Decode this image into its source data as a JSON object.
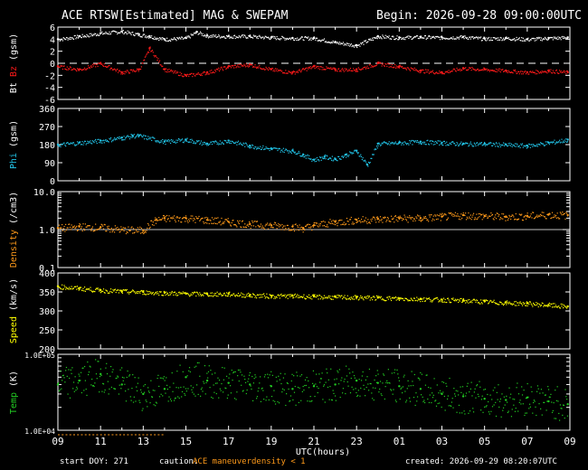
{
  "header": {
    "title": "ACE RTSW[Estimated] MAG & SWEPAM",
    "begin": "Begin: 2026-09-28 09:00:00UTC"
  },
  "footer": {
    "start_doy": "start DOY: 271",
    "caution_label": "caution:",
    "caution_maneuver": "ACE maneuver",
    "caution_density": "density < 1",
    "created": "created: 2026-09-29 08:20:07UTC"
  },
  "colors": {
    "bt": "#ffffff",
    "bz": "#ff1a1a",
    "phi": "#22c4e8",
    "density": "#ff9a1a",
    "speed": "#ffff00",
    "temp": "#22cc22",
    "axis": "#ffffff",
    "background": "#000000",
    "maneuver": "#ff9a1a"
  },
  "chart_data": [
    {
      "type": "line",
      "panel": "mag",
      "ylabel_parts": [
        "Bt",
        "Bz",
        "(gsm)"
      ],
      "yticks": [
        6,
        4,
        2,
        0,
        -2,
        -4,
        -6
      ],
      "ylim": [
        -6,
        6
      ],
      "zero_line_dashed": true,
      "series": [
        {
          "name": "Bt",
          "x": [
            0,
            1,
            2,
            3,
            3.8,
            4.3,
            5,
            6,
            6.5,
            7,
            8,
            9,
            10,
            11,
            12,
            13,
            14,
            15,
            16,
            17,
            18,
            19,
            20,
            21,
            22,
            23,
            23.9
          ],
          "values": [
            4,
            4.5,
            5,
            5.3,
            4.8,
            4.5,
            4,
            4.2,
            5.2,
            4.6,
            4.5,
            4.5,
            4.3,
            4.2,
            4.2,
            3.5,
            3,
            4.5,
            4.3,
            4.4,
            4.3,
            4.4,
            4.1,
            4.2,
            4.0,
            4.2,
            4.3
          ]
        },
        {
          "name": "Bz",
          "x": [
            0,
            1,
            2,
            3,
            3.8,
            4.3,
            5,
            6,
            7,
            8,
            9,
            10,
            11,
            12,
            13,
            14,
            15,
            16,
            17,
            18,
            19,
            20,
            21,
            22,
            23,
            23.9
          ],
          "values": [
            -0.5,
            -1,
            0,
            -1.5,
            -1,
            2.5,
            -1,
            -2,
            -1.5,
            -0.5,
            -0.2,
            -1,
            -1.5,
            -0.5,
            -1,
            -1,
            0,
            -0.5,
            -1.2,
            -1.5,
            -0.8,
            -1,
            -1.2,
            -1.5,
            -1.2,
            -1.5
          ]
        }
      ]
    },
    {
      "type": "scatter",
      "panel": "phi",
      "ylabel_parts": [
        "Phi",
        "(gsm)"
      ],
      "yticks": [
        360,
        270,
        180,
        90,
        0
      ],
      "ylim": [
        0,
        360
      ],
      "series": [
        {
          "name": "Phi",
          "x": [
            0,
            1,
            2,
            3,
            3.5,
            3.8,
            5,
            6,
            7,
            8,
            9,
            10,
            11,
            11.5,
            12,
            12.5,
            13,
            13.5,
            14,
            14.5,
            15,
            16,
            17,
            18,
            19,
            20,
            21,
            22,
            23,
            23.9
          ],
          "values": [
            180,
            190,
            200,
            215,
            225,
            225,
            195,
            205,
            185,
            200,
            175,
            160,
            150,
            130,
            105,
            120,
            110,
            130,
            150,
            80,
            185,
            190,
            195,
            190,
            185,
            185,
            180,
            175,
            190,
            205
          ]
        }
      ]
    },
    {
      "type": "scatter",
      "panel": "density",
      "log_scale": true,
      "ylabel_parts": [
        "Density",
        "(/cm3)"
      ],
      "ytick_labels": [
        "10.0",
        "1.0",
        "0.1"
      ],
      "ylim": [
        0.1,
        10
      ],
      "series": [
        {
          "name": "Density",
          "x": [
            0,
            1,
            2,
            3,
            4,
            4.6,
            5,
            6,
            7,
            8,
            9,
            10,
            11,
            11.5,
            12,
            13,
            14,
            15,
            16,
            17,
            18,
            19,
            20,
            21,
            22,
            23,
            23.9
          ],
          "values": [
            1.1,
            1.2,
            1.15,
            1.0,
            0.95,
            1.8,
            2.0,
            2.0,
            1.8,
            1.6,
            1.4,
            1.3,
            1.2,
            1.1,
            1.3,
            1.6,
            1.8,
            1.9,
            2.0,
            2.0,
            2.2,
            2.4,
            2.3,
            2.2,
            2.3,
            2.5,
            2.4
          ]
        }
      ]
    },
    {
      "type": "scatter",
      "panel": "speed",
      "ylabel_parts": [
        "Speed",
        "(km/s)"
      ],
      "yticks": [
        400,
        350,
        300,
        250,
        200
      ],
      "ylim": [
        200,
        400
      ],
      "series": [
        {
          "name": "Speed",
          "x": [
            0,
            1,
            2,
            3,
            4,
            5,
            6,
            7,
            8,
            9,
            10,
            11,
            12,
            13,
            14,
            15,
            16,
            17,
            18,
            19,
            20,
            21,
            22,
            23,
            23.9
          ],
          "values": [
            365,
            360,
            355,
            352,
            350,
            348,
            346,
            345,
            345,
            342,
            340,
            340,
            338,
            337,
            336,
            335,
            333,
            332,
            330,
            328,
            325,
            322,
            320,
            316,
            312
          ]
        }
      ]
    },
    {
      "type": "scatter",
      "panel": "temp",
      "log_scale": true,
      "ylabel_parts": [
        "Temp",
        "(K)"
      ],
      "ytick_labels": [
        "1.0E+05",
        "1.0E+04"
      ],
      "ylim": [
        10000,
        100000
      ],
      "series": [
        {
          "name": "Temp",
          "x": [
            0,
            1,
            2,
            3,
            4,
            5,
            6,
            7,
            8,
            9,
            10,
            11,
            12,
            13,
            14,
            15,
            16,
            17,
            18,
            19,
            20,
            21,
            22,
            23,
            23.9
          ],
          "values": [
            40000,
            45000,
            55000,
            40000,
            30000,
            35000,
            50000,
            45000,
            42000,
            40000,
            38000,
            35000,
            38000,
            40000,
            45000,
            42000,
            38000,
            35000,
            30000,
            28000,
            26000,
            25000,
            27000,
            24000,
            22000
          ]
        }
      ]
    }
  ],
  "x_axis": {
    "label": "UTC(hours)",
    "tick_labels": [
      "09",
      "11",
      "13",
      "15",
      "17",
      "19",
      "21",
      "23",
      "01",
      "03",
      "05",
      "07",
      "09"
    ]
  }
}
